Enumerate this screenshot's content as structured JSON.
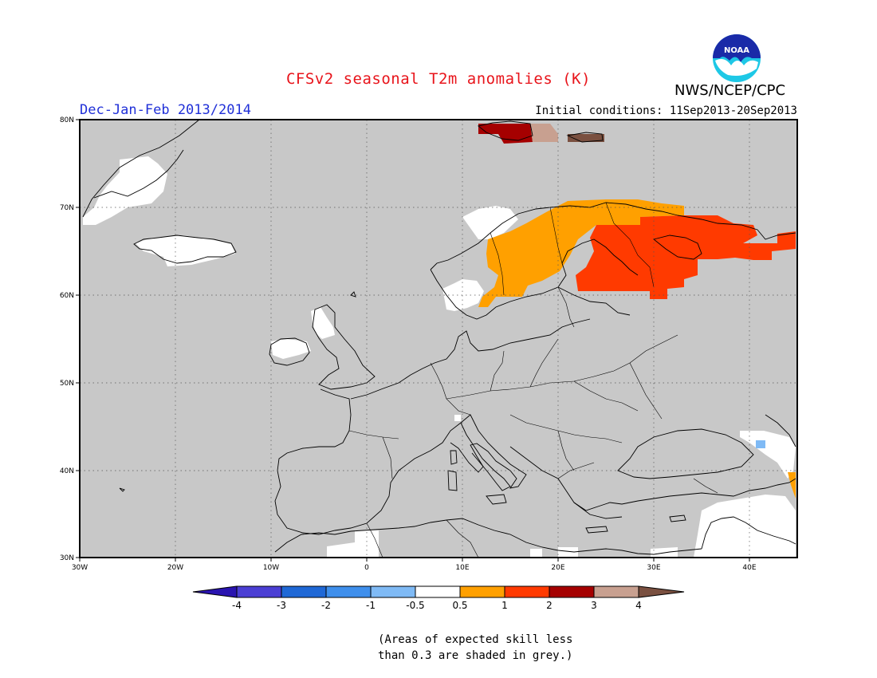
{
  "title": "CFSv2 seasonal T2m anomalies (K)",
  "agency": "NWS/NCEP/CPC",
  "logo_text": "NOAA",
  "season": "Dec-Jan-Feb 2013/2014",
  "initial_conditions": "Initial conditions: 11Sep2013-20Sep2013",
  "map": {
    "lon_range": [
      -30,
      45
    ],
    "lat_range": [
      30,
      80
    ],
    "lon_ticks": [
      "30W",
      "20W",
      "10W",
      "0",
      "10E",
      "20E",
      "30E",
      "40E"
    ],
    "lat_ticks": [
      "80N",
      "70N",
      "60N",
      "50N",
      "40N",
      "30N"
    ],
    "background_color": "#c8c8c8",
    "gridlines": "dotted"
  },
  "colorbar": {
    "labels": [
      "-4",
      "-3",
      "-2",
      "-1",
      "-0.5",
      "0.5",
      "1",
      "2",
      "3",
      "4"
    ],
    "colors": [
      "#2a14b0",
      "#4b3fd4",
      "#1f68d6",
      "#3f8fec",
      "#7fbaf5",
      "#ffffff",
      "#ffa000",
      "#ff3a00",
      "#a50000",
      "#c8a090",
      "#7a5040"
    ]
  },
  "note_line1": "(Areas of expected skill less",
  "note_line2": "than 0.3 are shaded in grey.)"
}
